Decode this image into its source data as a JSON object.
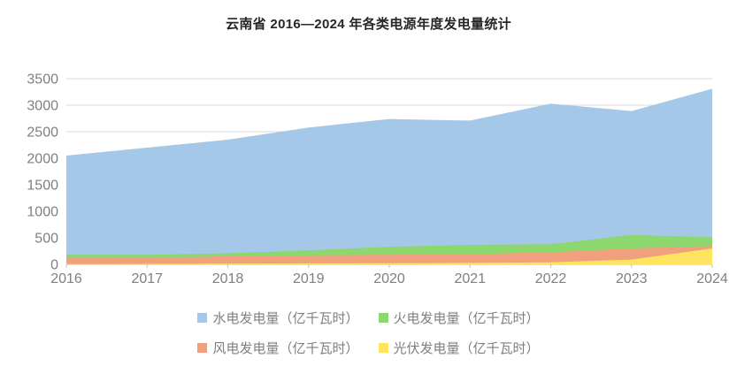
{
  "title": "云南省 2016—2024 年各类电源年度发电量统计",
  "chart_data": {
    "type": "area",
    "stacked": true,
    "stack_bottom_to_top": true,
    "x": [
      "2016",
      "2017",
      "2018",
      "2019",
      "2020",
      "2021",
      "2022",
      "2023",
      "2024"
    ],
    "xlabel": "",
    "ylabel": "",
    "ylim": [
      0,
      3500
    ],
    "y_ticks": [
      0,
      500,
      1000,
      1500,
      2000,
      2500,
      3000,
      3500
    ],
    "grid": true,
    "legend_position": "bottom",
    "series": [
      {
        "key": "solar",
        "name": "光伏发电量（亿千瓦时）",
        "color": "#FFE45F",
        "values": [
          3,
          8,
          15,
          18,
          22,
          27,
          38,
          90,
          300
        ]
      },
      {
        "key": "wind",
        "name": "风电发电量（亿千瓦时）",
        "color": "#F0A07D",
        "values": [
          118,
          115,
          135,
          150,
          160,
          165,
          190,
          210,
          45
        ]
      },
      {
        "key": "thermal",
        "name": "火电发电量（亿千瓦时）",
        "color": "#8CD76E",
        "values": [
          57,
          55,
          58,
          95,
          150,
          175,
          150,
          255,
          163
        ]
      },
      {
        "key": "hydro",
        "name": "水电发电量（亿千瓦时）",
        "color": "#A5C8E8",
        "values": [
          1872,
          2022,
          2142,
          2317,
          2408,
          2343,
          2652,
          2335,
          2802
        ]
      }
    ],
    "totals": [
      2050,
      2200,
      2350,
      2580,
      2740,
      2710,
      3030,
      2890,
      3310
    ]
  },
  "colors": {
    "grid_line": "#D9D9D9",
    "axis_line": "#BFBFBF",
    "axis_label": "#7F7F7F",
    "title_text": "#262626",
    "legend_text": "#7F7F7F"
  }
}
